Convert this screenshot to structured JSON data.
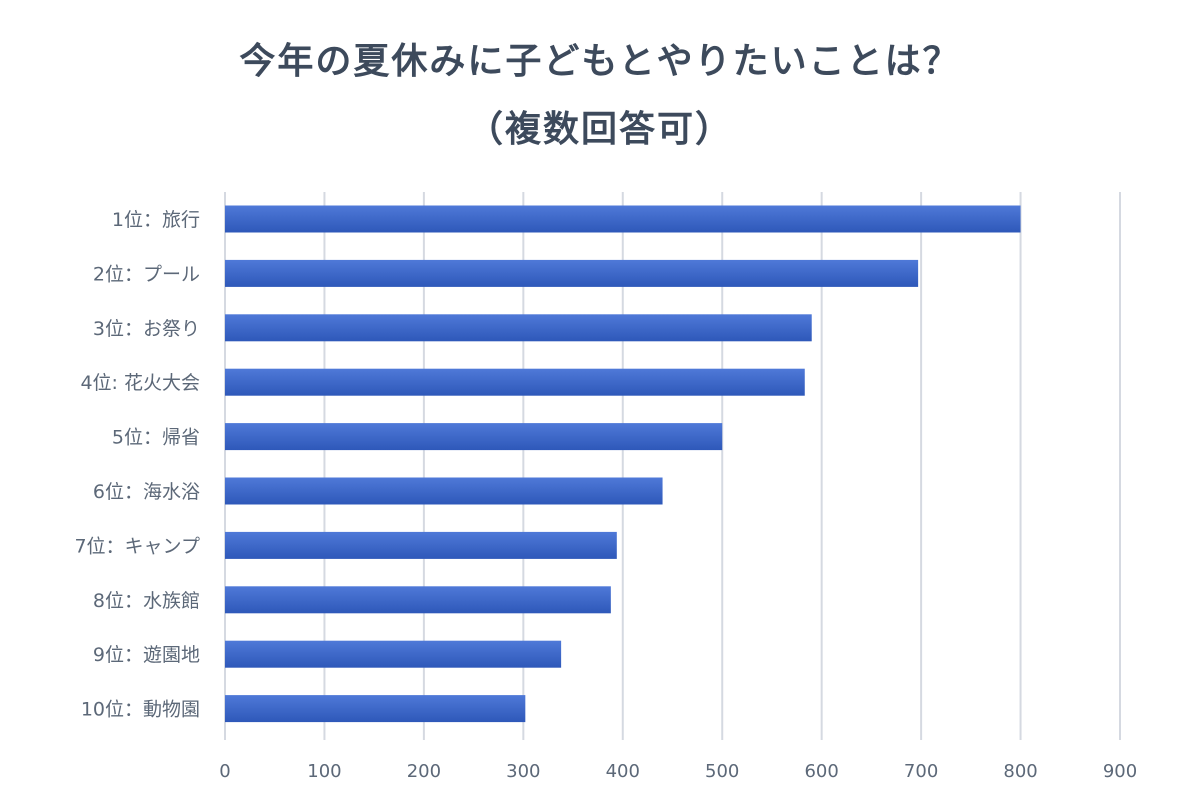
{
  "title": {
    "line1": "今年の夏休みに子どもとやりたいことは？",
    "line2": "（複数回答可）"
  },
  "colors": {
    "bar_top": "#4f79d8",
    "bar_bottom": "#2e58b9",
    "grid": "#d5d9e1",
    "text": "#5c6878",
    "title": "#3d4a5c"
  },
  "chart_data": {
    "type": "bar",
    "orientation": "horizontal",
    "categories": [
      "1位：旅行",
      "2位：プール",
      "3位：お祭り",
      "4位:  花火大会",
      "5位：帰省",
      "6位：海水浴",
      "7位：キャンプ",
      "8位：水族館",
      "9位：遊園地",
      "10位：動物園"
    ],
    "values": [
      800,
      697,
      590,
      583,
      500,
      440,
      394,
      388,
      338,
      302
    ],
    "xlim": [
      0,
      900
    ],
    "xticks": [
      0,
      100,
      200,
      300,
      400,
      500,
      600,
      700,
      800,
      900
    ],
    "grid": true,
    "legend": "none"
  }
}
